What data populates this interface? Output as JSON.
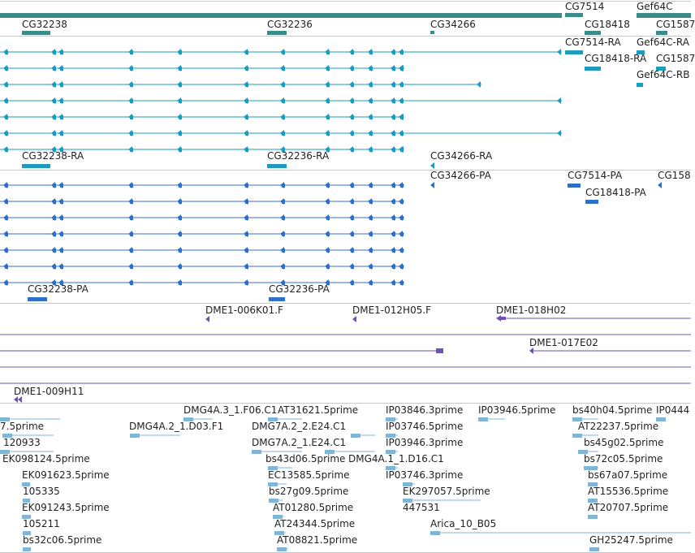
{
  "colors": {
    "gene": "#3a8c8a",
    "gene_label": "#222222",
    "transcript": "#1b9bbf",
    "protein": "#2f6fc9",
    "clone": "#6e52b4",
    "est": "#7fb6d8",
    "separator": "#c8c8c8"
  },
  "tracks": {
    "genes": {
      "labels": [
        "CG7514",
        "Gef64C",
        "CG32238",
        "CG32236",
        "CG34266",
        "CG18418",
        "CG1587"
      ]
    },
    "transcripts": {
      "labels": [
        "CG7514-RA",
        "Gef64C-RA",
        "CG18418-RA",
        "CG1587",
        "Gef64C-RB",
        "CG32238-RA",
        "CG32236-RA",
        "CG34266-RA"
      ]
    },
    "proteins": {
      "labels": [
        "CG34266-PA",
        "CG7514-PA",
        "CG158",
        "CG18418-PA",
        "CG32238-PA",
        "CG32236-PA"
      ]
    },
    "clones": {
      "labels": [
        "DME1-006K01.F",
        "DME1-012H05.F",
        "DME1-018H02",
        "DME1-017E02",
        "DME1-009H11"
      ]
    },
    "ests": {
      "labels": [
        "DMG4A.3_1.F06.C1",
        "AT31621.5prime",
        "IP03846.3prime",
        "IP03946.5prime",
        "bs40h04.5prime",
        "IP0444",
        "7.5prime",
        "DMG4A.2_1.D03.F1",
        "DMG7A.2_2.E24.C1",
        "IP03746.5prime",
        "AT22237.5prime",
        "120933",
        "DMG7A.2_1.E24.C1",
        "IP03946.3prime",
        "bs45g02.5prime",
        "EK098124.5prime",
        "bs43d06.5prime",
        "DMG4A.1_1.D16.C1",
        "bs72c05.5prime",
        "EK091623.5prime",
        "EC13585.5prime",
        "IP03746.3prime",
        "bs67a07.5prime",
        "105335",
        "bs27g09.5prime",
        "EK297057.5prime",
        "AT15536.5prime",
        "EK091243.5prime",
        "AT01280.5prime",
        "447531",
        "AT20707.5prime",
        "105211",
        "AT24344.5prime",
        "Arica_10_B05",
        "bs32c06.5prime",
        "AT08821.5prime",
        "GH25247.5prime"
      ]
    }
  }
}
